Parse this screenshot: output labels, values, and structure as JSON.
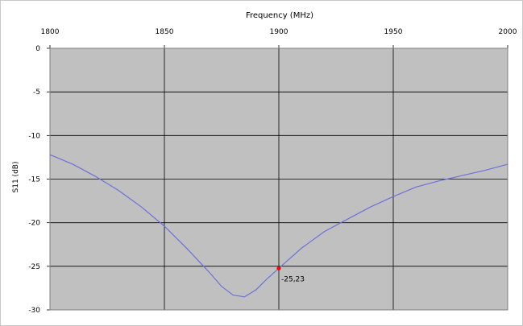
{
  "chart_data": {
    "type": "line",
    "title": "Frequency (MHz)",
    "xlabel": "Frequency (MHz)",
    "ylabel": "S11 (dB)",
    "xlim": [
      1800,
      2000
    ],
    "ylim": [
      -30,
      0
    ],
    "x_ticks": [
      "1800",
      "1850",
      "1900",
      "1950",
      "2000"
    ],
    "y_ticks": [
      "0",
      "-5",
      "-10",
      "-15",
      "-20",
      "-25",
      "-30"
    ],
    "x_axis_position": "top",
    "grid": true,
    "series": [
      {
        "color": "#6a72d8",
        "x": [
          1800,
          1810,
          1820,
          1830,
          1840,
          1850,
          1860,
          1870,
          1875,
          1880,
          1885,
          1890,
          1895,
          1900,
          1910,
          1920,
          1930,
          1940,
          1950,
          1960,
          1970,
          1980,
          1990,
          2000
        ],
        "y": [
          -12.2,
          -13.3,
          -14.7,
          -16.3,
          -18.2,
          -20.4,
          -23.0,
          -25.8,
          -27.3,
          -28.3,
          -28.5,
          -27.7,
          -26.4,
          -25.23,
          -22.9,
          -21.0,
          -19.6,
          -18.2,
          -17.0,
          -15.9,
          -15.2,
          -14.6,
          -14.0,
          -13.3
        ]
      }
    ],
    "marker": {
      "x": 1900,
      "y": -25.23,
      "label": "-25,23",
      "color": "#ff0000"
    },
    "plot_background": "#c0c0c0",
    "grid_color": "#000000"
  }
}
